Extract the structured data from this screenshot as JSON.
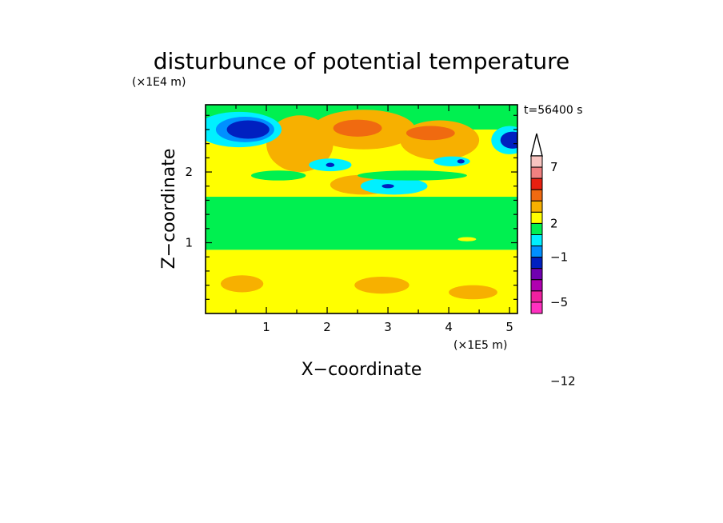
{
  "chart_data": {
    "type": "heatmap",
    "title": "disturbunce of potential temperature",
    "time_label": "t=56400 s",
    "xlabel": "X−coordinate",
    "ylabel": "Z−coordinate",
    "x_unit": "(×1E5 m)",
    "y_unit": "(×1E4 m)",
    "xlim": [
      0,
      5.13
    ],
    "ylim": [
      0,
      2.95
    ],
    "x_ticks": [
      "1",
      "2",
      "3",
      "4",
      "5"
    ],
    "y_ticks": [
      "1",
      "2"
    ],
    "colorbar": {
      "labels": [
        "7",
        "2",
        "−1",
        "−5",
        "−12"
      ],
      "label_levels": [
        7,
        2,
        -1,
        -5,
        -12
      ],
      "colors_top_to_bottom": [
        "#f8c4c0",
        "#f08080",
        "#e82010",
        "#f06a10",
        "#f7b000",
        "#ffff00",
        "#00f050",
        "#00f0ff",
        "#0090ff",
        "#0020c0",
        "#7000b0",
        "#b000b0",
        "#f020a0",
        "#ff30c0"
      ]
    },
    "palette": {
      "-6": "#0020c0",
      "-5": "#0090ff",
      "-4": "#00f0ff",
      "-3": "#00f050",
      "-2": "#ffff00",
      "-1": "#f7b000",
      "0": "#f06a10"
    },
    "field_features": [
      {
        "kind": "band",
        "z_from": 0.0,
        "z_to": 0.9,
        "level": -2
      },
      {
        "kind": "band",
        "z_from": 0.9,
        "z_to": 1.65,
        "level": -3
      },
      {
        "kind": "band",
        "z_from": 1.65,
        "z_to": 2.6,
        "level": -2
      },
      {
        "kind": "band",
        "z_from": 2.6,
        "z_to": 2.95,
        "level": -3
      },
      {
        "kind": "blob",
        "x": 1.55,
        "z": 2.4,
        "rx": 0.55,
        "rz": 0.4,
        "level": -1
      },
      {
        "kind": "blob",
        "x": 2.6,
        "z": 2.6,
        "rx": 0.85,
        "rz": 0.28,
        "level": -1
      },
      {
        "kind": "blob",
        "x": 3.85,
        "z": 2.45,
        "rx": 0.65,
        "rz": 0.28,
        "level": -1
      },
      {
        "kind": "blob",
        "x": 2.5,
        "z": 2.62,
        "rx": 0.4,
        "rz": 0.12,
        "level": 0
      },
      {
        "kind": "blob",
        "x": 3.7,
        "z": 2.55,
        "rx": 0.4,
        "rz": 0.1,
        "level": 0
      },
      {
        "kind": "blob",
        "x": 2.6,
        "z": 1.82,
        "rx": 0.55,
        "rz": 0.14,
        "level": -1
      },
      {
        "kind": "blob",
        "x": 0.6,
        "z": 0.42,
        "rx": 0.35,
        "rz": 0.12,
        "level": -1
      },
      {
        "kind": "blob",
        "x": 2.9,
        "z": 0.4,
        "rx": 0.45,
        "rz": 0.12,
        "level": -1
      },
      {
        "kind": "blob",
        "x": 4.4,
        "z": 0.3,
        "rx": 0.4,
        "rz": 0.1,
        "level": -1
      },
      {
        "kind": "blob",
        "x": 0.55,
        "z": 2.6,
        "rx": 0.7,
        "rz": 0.25,
        "level": -4
      },
      {
        "kind": "blob",
        "x": 0.65,
        "z": 2.6,
        "rx": 0.48,
        "rz": 0.18,
        "level": -5
      },
      {
        "kind": "blob",
        "x": 0.7,
        "z": 2.6,
        "rx": 0.35,
        "rz": 0.13,
        "level": -6
      },
      {
        "kind": "blob",
        "x": 5.0,
        "z": 2.45,
        "rx": 0.3,
        "rz": 0.2,
        "level": -4
      },
      {
        "kind": "blob",
        "x": 5.05,
        "z": 2.45,
        "rx": 0.2,
        "rz": 0.12,
        "level": -6
      },
      {
        "kind": "blob",
        "x": 2.05,
        "z": 2.1,
        "rx": 0.35,
        "rz": 0.09,
        "level": -4
      },
      {
        "kind": "blob",
        "x": 2.05,
        "z": 2.1,
        "rx": 0.07,
        "rz": 0.03,
        "level": -6
      },
      {
        "kind": "blob",
        "x": 4.05,
        "z": 2.15,
        "rx": 0.3,
        "rz": 0.07,
        "level": -4
      },
      {
        "kind": "blob",
        "x": 4.2,
        "z": 2.15,
        "rx": 0.06,
        "rz": 0.03,
        "level": -6
      },
      {
        "kind": "blob",
        "x": 3.1,
        "z": 1.8,
        "rx": 0.55,
        "rz": 0.12,
        "level": -4
      },
      {
        "kind": "blob",
        "x": 3.0,
        "z": 1.8,
        "rx": 0.1,
        "rz": 0.03,
        "level": -6
      },
      {
        "kind": "blob",
        "x": 1.2,
        "z": 1.95,
        "rx": 0.45,
        "rz": 0.07,
        "level": -3
      },
      {
        "kind": "blob",
        "x": 3.4,
        "z": 1.95,
        "rx": 0.9,
        "rz": 0.07,
        "level": -3
      },
      {
        "kind": "blob",
        "x": 4.3,
        "z": 1.05,
        "rx": 0.15,
        "rz": 0.03,
        "level": -2
      }
    ]
  }
}
